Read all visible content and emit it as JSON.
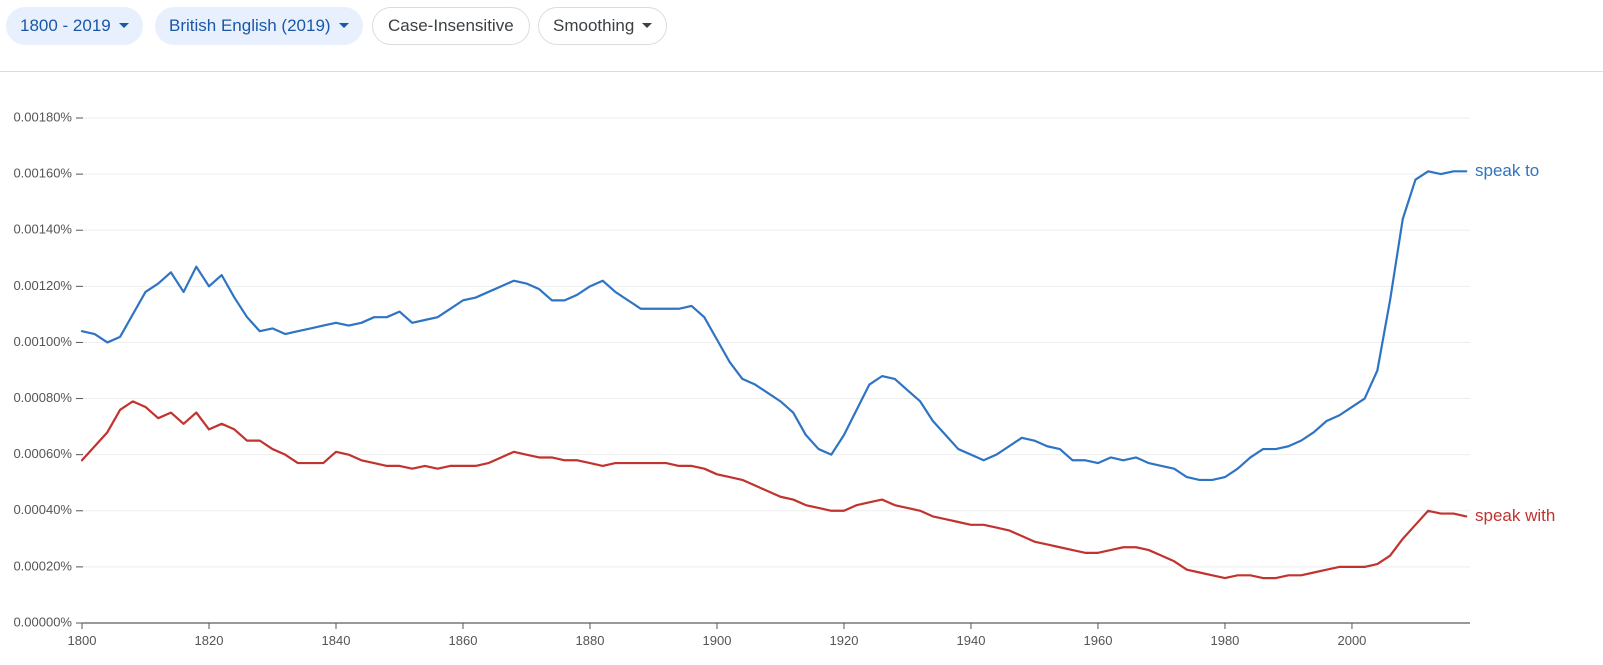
{
  "controls": [
    "1800 - 2019",
    "British English (2019)",
    "Case-Insensitive",
    "Smoothing"
  ],
  "chart_data": {
    "type": "line",
    "x": [
      1800,
      1802,
      1804,
      1806,
      1808,
      1810,
      1812,
      1814,
      1816,
      1818,
      1820,
      1822,
      1824,
      1826,
      1828,
      1830,
      1832,
      1834,
      1836,
      1838,
      1840,
      1842,
      1844,
      1846,
      1848,
      1850,
      1852,
      1854,
      1856,
      1858,
      1860,
      1862,
      1864,
      1866,
      1868,
      1870,
      1872,
      1874,
      1876,
      1878,
      1880,
      1882,
      1884,
      1886,
      1888,
      1890,
      1892,
      1894,
      1896,
      1898,
      1900,
      1902,
      1904,
      1906,
      1908,
      1910,
      1912,
      1914,
      1916,
      1918,
      1920,
      1922,
      1924,
      1926,
      1928,
      1930,
      1932,
      1934,
      1936,
      1938,
      1940,
      1942,
      1944,
      1946,
      1948,
      1950,
      1952,
      1954,
      1956,
      1958,
      1960,
      1962,
      1964,
      1966,
      1968,
      1970,
      1972,
      1974,
      1976,
      1978,
      1980,
      1982,
      1984,
      1986,
      1988,
      1990,
      1992,
      1994,
      1996,
      1998,
      2000,
      2002,
      2004,
      2006,
      2008,
      2010,
      2012,
      2014,
      2016,
      2018
    ],
    "series": [
      {
        "name": "speak to",
        "color": "#2f74c3",
        "values": [
          0.00104,
          0.00103,
          0.001,
          0.00102,
          0.0011,
          0.00118,
          0.00121,
          0.00125,
          0.00118,
          0.00127,
          0.0012,
          0.00124,
          0.00116,
          0.00109,
          0.00104,
          0.00105,
          0.00103,
          0.00104,
          0.00105,
          0.00106,
          0.00107,
          0.00106,
          0.00107,
          0.00109,
          0.00109,
          0.00111,
          0.00107,
          0.00108,
          0.00109,
          0.00112,
          0.00115,
          0.00116,
          0.00118,
          0.0012,
          0.00122,
          0.00121,
          0.00119,
          0.00115,
          0.00115,
          0.00117,
          0.0012,
          0.00122,
          0.00118,
          0.00115,
          0.00112,
          0.00112,
          0.00112,
          0.00112,
          0.00113,
          0.00109,
          0.00101,
          0.00093,
          0.00087,
          0.00085,
          0.00082,
          0.00079,
          0.00075,
          0.00067,
          0.00062,
          0.0006,
          0.00067,
          0.00076,
          0.00085,
          0.00088,
          0.00087,
          0.00083,
          0.00079,
          0.00072,
          0.00067,
          0.00062,
          0.0006,
          0.00058,
          0.0006,
          0.00063,
          0.00066,
          0.00065,
          0.00063,
          0.00062,
          0.00058,
          0.00058,
          0.00057,
          0.00059,
          0.00058,
          0.00059,
          0.00057,
          0.00056,
          0.00055,
          0.00052,
          0.00051,
          0.00051,
          0.00052,
          0.00055,
          0.00059,
          0.00062,
          0.00062,
          0.00063,
          0.00065,
          0.00068,
          0.00072,
          0.00074,
          0.00077,
          0.0008,
          0.0009,
          0.00115,
          0.00144,
          0.00158,
          0.00161,
          0.0016,
          0.00161,
          0.00161
        ]
      },
      {
        "name": "speak with",
        "color": "#c0332f",
        "values": [
          0.00058,
          0.00063,
          0.00068,
          0.00076,
          0.00079,
          0.00077,
          0.00073,
          0.00075,
          0.00071,
          0.00075,
          0.00069,
          0.00071,
          0.00069,
          0.00065,
          0.00065,
          0.00062,
          0.0006,
          0.00057,
          0.00057,
          0.00057,
          0.00061,
          0.0006,
          0.00058,
          0.00057,
          0.00056,
          0.00056,
          0.00055,
          0.00056,
          0.00055,
          0.00056,
          0.00056,
          0.00056,
          0.00057,
          0.00059,
          0.00061,
          0.0006,
          0.00059,
          0.00059,
          0.00058,
          0.00058,
          0.00057,
          0.00056,
          0.00057,
          0.00057,
          0.00057,
          0.00057,
          0.00057,
          0.00056,
          0.00056,
          0.00055,
          0.00053,
          0.00052,
          0.00051,
          0.00049,
          0.00047,
          0.00045,
          0.00044,
          0.00042,
          0.00041,
          0.0004,
          0.0004,
          0.00042,
          0.00043,
          0.00044,
          0.00042,
          0.00041,
          0.0004,
          0.00038,
          0.00037,
          0.00036,
          0.00035,
          0.00035,
          0.00034,
          0.00033,
          0.00031,
          0.00029,
          0.00028,
          0.00027,
          0.00026,
          0.00025,
          0.00025,
          0.00026,
          0.00027,
          0.00027,
          0.00026,
          0.00024,
          0.00022,
          0.00019,
          0.00018,
          0.00017,
          0.00016,
          0.00017,
          0.00017,
          0.00016,
          0.00016,
          0.00017,
          0.00017,
          0.00018,
          0.00019,
          0.0002,
          0.0002,
          0.0002,
          0.00021,
          0.00024,
          0.0003,
          0.00035,
          0.0004,
          0.00039,
          0.00039,
          0.00038
        ]
      }
    ],
    "xlim": [
      1800,
      2019
    ],
    "xticks": [
      1800,
      1820,
      1840,
      1860,
      1880,
      1900,
      1920,
      1940,
      1960,
      1980,
      2000
    ],
    "ylim": [
      0,
      0.0018
    ],
    "yticks": [
      {
        "value": 0,
        "label": "0.00000%"
      },
      {
        "value": 0.0002,
        "label": "0.00020%"
      },
      {
        "value": 0.0004,
        "label": "0.00040%"
      },
      {
        "value": 0.0006,
        "label": "0.00060%"
      },
      {
        "value": 0.0008,
        "label": "0.00080%"
      },
      {
        "value": 0.001,
        "label": "0.00100%"
      },
      {
        "value": 0.0012,
        "label": "0.00120%"
      },
      {
        "value": 0.0014,
        "label": "0.00140%"
      },
      {
        "value": 0.0016,
        "label": "0.00160%"
      },
      {
        "value": 0.0018,
        "label": "0.00180%"
      }
    ],
    "grid": true,
    "legend": "line-end"
  }
}
